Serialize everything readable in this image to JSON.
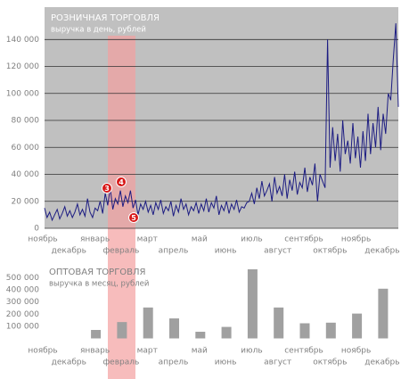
{
  "chart_data": [
    {
      "type": "line",
      "title": "РОЗНИЧНАЯ ТОРГОВЛЯ",
      "subtitle": "выручка в день, рублей",
      "x_labels": [
        "ноябрь",
        "декабрь",
        "январь",
        "февраль",
        "март",
        "апрель",
        "май",
        "июнь",
        "июль",
        "август",
        "сентябрь",
        "октябрь",
        "ноябрь",
        "декабрь"
      ],
      "values": [
        15000,
        8000,
        12000,
        6000,
        10000,
        14000,
        7000,
        11000,
        16000,
        9000,
        13000,
        8000,
        12000,
        18000,
        10000,
        14000,
        9000,
        22000,
        12000,
        8000,
        15000,
        13000,
        20000,
        11000,
        26000,
        17000,
        30000,
        14000,
        22000,
        18000,
        28000,
        16000,
        24000,
        19000,
        28000,
        15000,
        21000,
        10000,
        18000,
        14000,
        20000,
        12000,
        17000,
        10000,
        19000,
        14000,
        21000,
        11000,
        16000,
        13000,
        20000,
        9000,
        17000,
        12000,
        22000,
        14000,
        18000,
        10000,
        16000,
        13000,
        19000,
        11000,
        18000,
        13000,
        22000,
        12000,
        19000,
        15000,
        24000,
        10000,
        17000,
        13000,
        20000,
        11000,
        18000,
        14000,
        21000,
        12000,
        16000,
        15000,
        19000,
        20000,
        26000,
        18000,
        30000,
        22000,
        35000,
        24000,
        28000,
        33000,
        20000,
        38000,
        26000,
        31000,
        24000,
        40000,
        22000,
        36000,
        28000,
        42000,
        25000,
        34000,
        30000,
        45000,
        27000,
        38000,
        32000,
        48000,
        20000,
        40000,
        35000,
        30000,
        140000,
        45000,
        75000,
        50000,
        70000,
        42000,
        80000,
        55000,
        65000,
        48000,
        78000,
        52000,
        68000,
        45000,
        72000,
        50000,
        85000,
        55000,
        78000,
        60000,
        90000,
        58000,
        85000,
        70000,
        100000,
        95000,
        125000,
        152000,
        90000
      ],
      "color": "#1c1c82",
      "ylim": [
        0,
        164000
      ],
      "yticks": [
        {
          "value": 0,
          "label": "0"
        },
        {
          "value": 20000,
          "label": "20 000"
        },
        {
          "value": 40000,
          "label": "40 000"
        },
        {
          "value": 60000,
          "label": "60 000"
        },
        {
          "value": 80000,
          "label": "80 000"
        },
        {
          "value": 100000,
          "label": "100 000"
        },
        {
          "value": 120000,
          "label": "120 000"
        },
        {
          "value": 140000,
          "label": "140 000"
        }
      ],
      "grid": true,
      "annotations": [
        "3",
        "4",
        "5"
      ]
    },
    {
      "type": "bar",
      "title": "ОПТОВАЯ ТОРГОВЛЯ",
      "subtitle": "выручка в месяц, рублей",
      "categories": [
        "ноябрь",
        "декабрь",
        "январь",
        "февраль",
        "март",
        "апрель",
        "май",
        "июнь",
        "июль",
        "август",
        "сентябрь",
        "октябрь",
        "ноябрь",
        "декабрь"
      ],
      "values": [
        null,
        null,
        70000,
        135000,
        255000,
        165000,
        55000,
        95000,
        570000,
        255000,
        125000,
        130000,
        205000,
        410000
      ],
      "color": "#a0a0a0",
      "ylim": [
        0,
        570000
      ],
      "yticks": [
        {
          "value": 100000,
          "label": "100 000"
        },
        {
          "value": 200000,
          "label": "200 000"
        },
        {
          "value": 300000,
          "label": "300 000"
        },
        {
          "value": 400000,
          "label": "400 000"
        },
        {
          "value": 500000,
          "label": "500 000"
        }
      ],
      "grid": false
    }
  ]
}
